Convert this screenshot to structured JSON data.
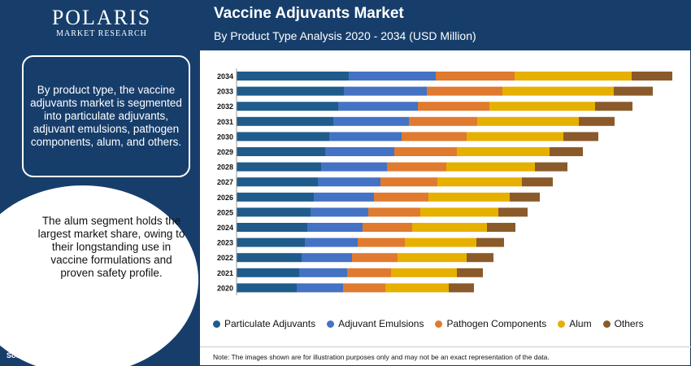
{
  "brand": {
    "name": "POLARIS",
    "tagline": "MARKET RESEARCH"
  },
  "sidebar": {
    "summary": "By product type, the vaccine adjuvants market is segmented into particulate adjuvants, adjuvant emulsions, pathogen components, alum, and others.",
    "highlight": "The alum segment holds the largest market share, owing to their longstanding use in vaccine formulations and proven safety profile.",
    "source": "Source:www.polarismarketresearch.com"
  },
  "footer_note": "Note: The images shown are for illustration purposes only and may not be an exact representation of the data.",
  "chart_data": {
    "type": "bar",
    "orientation": "horizontal",
    "stacked": true,
    "title": "Vaccine Adjuvants Market",
    "subtitle": "By Product Type Analysis 2020 - 2034 (USD Million)",
    "categories": [
      "2034",
      "2033",
      "2032",
      "2031",
      "2030",
      "2029",
      "2028",
      "2027",
      "2026",
      "2025",
      "2024",
      "2023",
      "2022",
      "2021",
      "2020"
    ],
    "series": [
      {
        "name": "Particulate Adjuvants",
        "color": "#1f5c8b",
        "values": [
          138,
          132,
          125,
          119,
          114,
          109,
          104,
          100,
          95,
          91,
          87,
          84,
          80,
          77,
          74
        ]
      },
      {
        "name": "Adjuvant Emulsions",
        "color": "#4472c4",
        "values": [
          107,
          102,
          98,
          93,
          89,
          85,
          81,
          77,
          74,
          71,
          68,
          65,
          62,
          59,
          57
        ]
      },
      {
        "name": "Pathogen Components",
        "color": "#e07a2f",
        "values": [
          97,
          93,
          88,
          84,
          80,
          77,
          73,
          70,
          67,
          64,
          61,
          58,
          56,
          54,
          52
        ]
      },
      {
        "name": "Alum",
        "color": "#e6b000",
        "values": [
          144,
          137,
          130,
          125,
          119,
          114,
          109,
          104,
          100,
          96,
          92,
          88,
          85,
          81,
          78
        ]
      },
      {
        "name": "Others",
        "color": "#8b5a2b",
        "values": [
          50,
          48,
          46,
          44,
          43,
          41,
          40,
          38,
          37,
          36,
          35,
          34,
          33,
          32,
          31
        ]
      }
    ],
    "xlim": [
      0,
      540
    ],
    "grid": false,
    "legend_position": "bottom"
  }
}
